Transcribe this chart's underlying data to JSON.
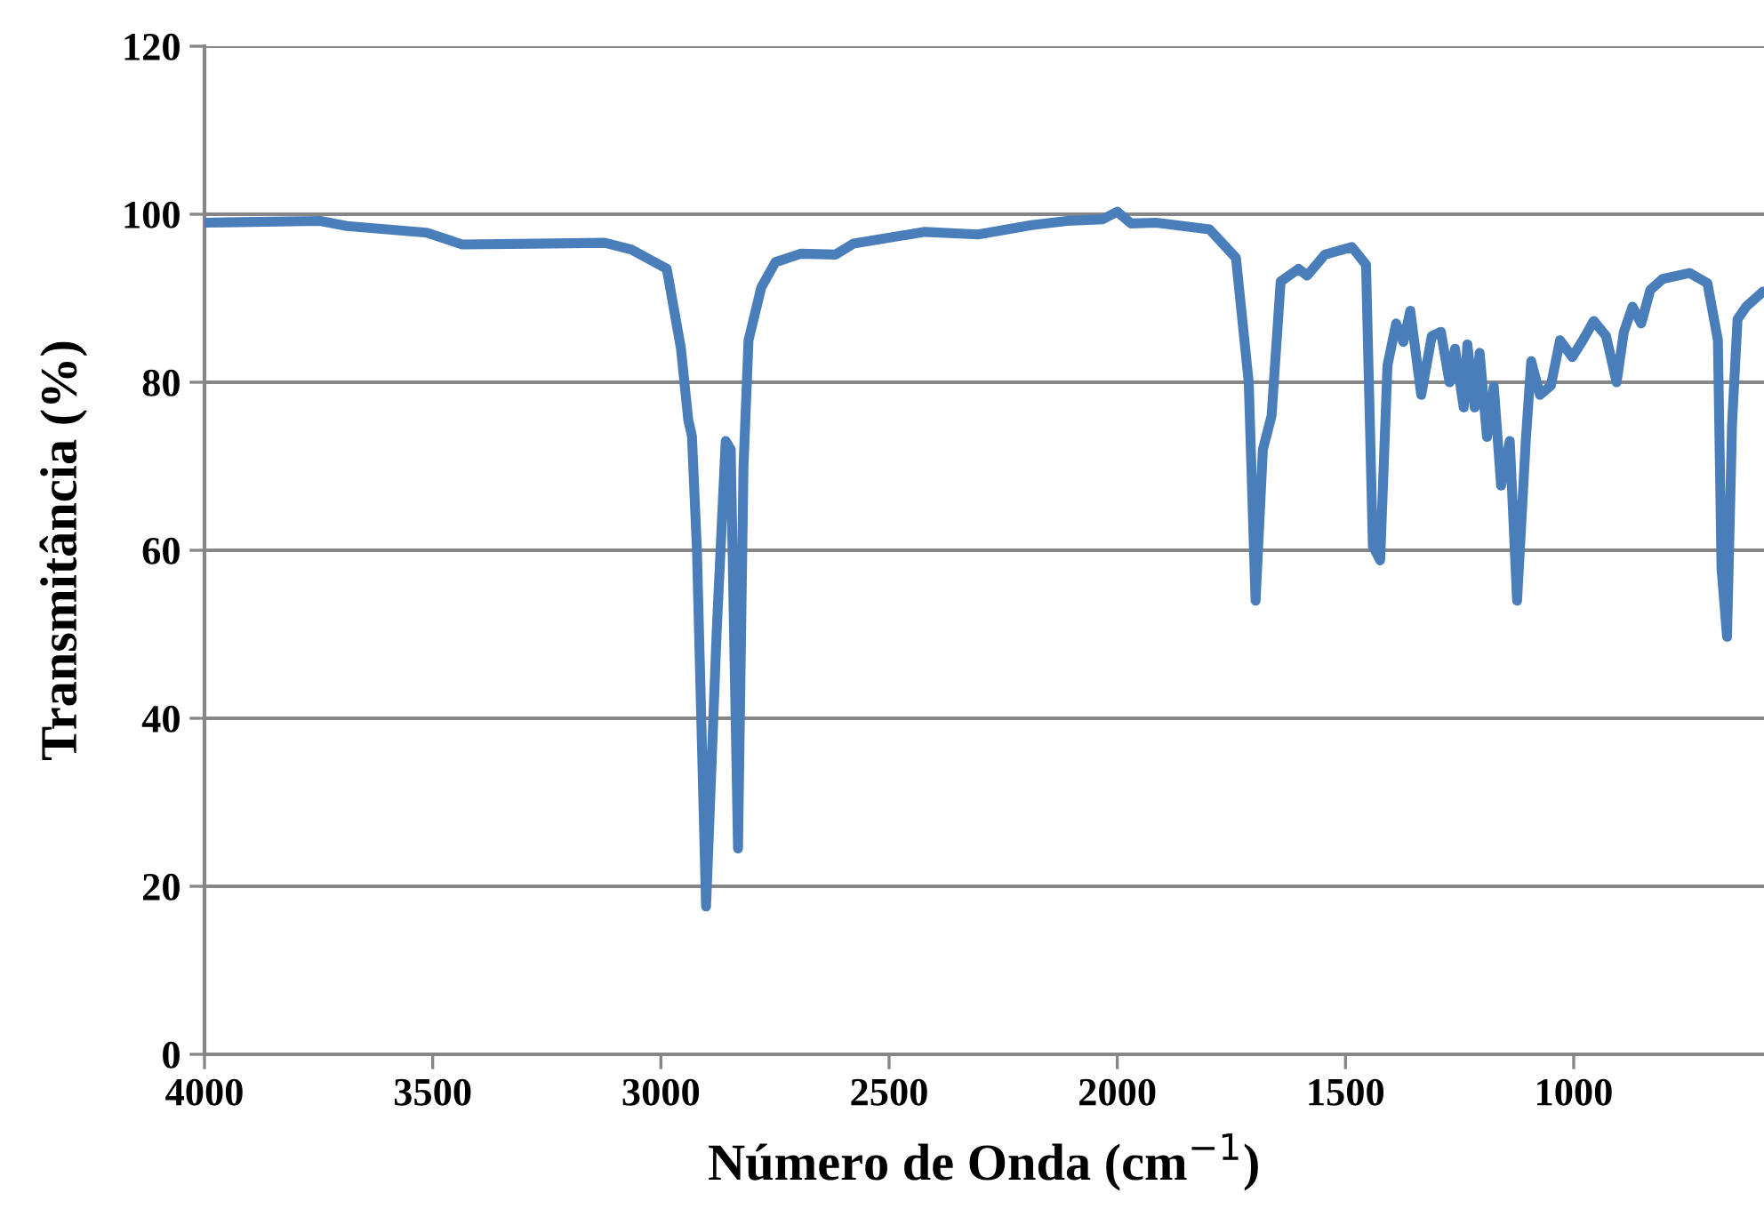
{
  "chart_data": {
    "type": "line",
    "xlabel": "Número de Onda (cm$^{−1}$)",
    "ylabel": "Transmitância (%)",
    "xlim": [
      4000,
      583
    ],
    "xticks": [
      4000,
      3500,
      3000,
      2500,
      2000,
      1500,
      1000
    ],
    "ylim": [
      0,
      120
    ],
    "yticks": [
      0,
      20,
      40,
      60,
      80,
      100,
      120
    ],
    "grid": "y",
    "marker": "none",
    "line_style": "solid",
    "series": [
      {
        "color": "#4a7ebb",
        "x": [
          4000,
          3747,
          3688,
          3513,
          3435,
          3279,
          3123,
          3065,
          2987,
          2956,
          2940,
          2932,
          2921,
          2901,
          2878,
          2858,
          2847,
          2831,
          2819,
          2808,
          2780,
          2749,
          2694,
          2617,
          2578,
          2422,
          2305,
          2188,
          2110,
          2032,
          2000,
          1970,
          1915,
          1798,
          1740,
          1712,
          1697,
          1681,
          1662,
          1642,
          1603,
          1584,
          1545,
          1486,
          1455,
          1440,
          1424,
          1408,
          1389,
          1373,
          1358,
          1334,
          1311,
          1291,
          1272,
          1260,
          1241,
          1233,
          1217,
          1206,
          1190,
          1175,
          1159,
          1140,
          1124,
          1105,
          1093,
          1074,
          1050,
          1030,
          1003,
          980,
          956,
          929,
          906,
          890,
          871,
          852,
          832,
          805,
          746,
          707,
          684,
          676,
          664,
          653,
          641,
          622,
          585
        ],
        "values": [
          99,
          99.2,
          98.6,
          97.8,
          96.4,
          96.5,
          96.6,
          95.8,
          93.5,
          84,
          75.5,
          73.6,
          60,
          17.6,
          50,
          73,
          72,
          24.5,
          70,
          85,
          91.3,
          94.3,
          95.3,
          95.2,
          96.5,
          97.9,
          97.6,
          98.7,
          99.2,
          99.4,
          100.3,
          98.9,
          99,
          98.2,
          94.8,
          80,
          54,
          72,
          76,
          92,
          93.5,
          92.7,
          95.2,
          96.1,
          94,
          60.5,
          58.8,
          82,
          87,
          84.8,
          88.5,
          78.5,
          85.5,
          86,
          80,
          84,
          77,
          84.5,
          77,
          83.5,
          73.5,
          79.5,
          67.7,
          73,
          54,
          73,
          82.5,
          78.5,
          79.6,
          85,
          83,
          85,
          87.3,
          85.5,
          80,
          86,
          89,
          87,
          91,
          92.3,
          93,
          91.8,
          85,
          57.8,
          49.7,
          75,
          87.5,
          89,
          90.8
        ]
      }
    ]
  }
}
